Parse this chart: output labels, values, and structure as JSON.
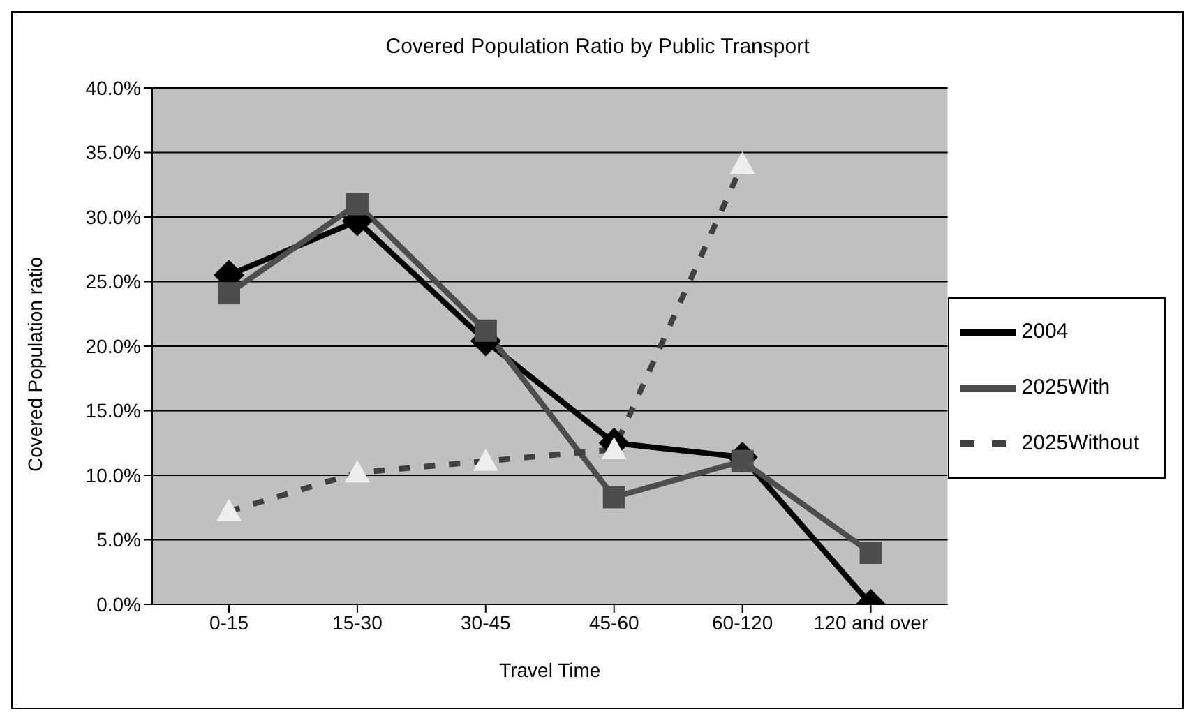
{
  "chart_data": {
    "type": "line",
    "title": "Covered Population Ratio by Public Transport",
    "xlabel": "Travel Time",
    "ylabel": "Covered Population ratio",
    "categories": [
      "0-15",
      "15-30",
      "30-45",
      "45-60",
      "60-120",
      "120 and over"
    ],
    "series": [
      {
        "name": "2004",
        "color": "#000000",
        "marker": "diamond",
        "line_style": "solid",
        "values": [
          25.5,
          29.7,
          20.4,
          12.5,
          11.4,
          0
        ]
      },
      {
        "name": "2025With",
        "color": "#4d4d4d",
        "marker": "square",
        "line_style": "solid",
        "values": [
          24.1,
          31.0,
          21.2,
          8.3,
          11.1,
          4.0
        ]
      },
      {
        "name": "2025Without",
        "color": "#404040",
        "marker": "triangle",
        "line_style": "dashed",
        "values": [
          7.2,
          10.2,
          11.1,
          12.0,
          34.1,
          null
        ]
      }
    ],
    "ylim": [
      0,
      40
    ],
    "yticks": [
      {
        "value": 0,
        "label": "0.0%"
      },
      {
        "value": 5,
        "label": "5.0%"
      },
      {
        "value": 10,
        "label": "10.0%"
      },
      {
        "value": 15,
        "label": "15.0%"
      },
      {
        "value": 20,
        "label": "20.0%"
      },
      {
        "value": 25,
        "label": "25.0%"
      },
      {
        "value": 30,
        "label": "30.0%"
      },
      {
        "value": 35,
        "label": "35.0%"
      },
      {
        "value": 40,
        "label": "40.0%"
      }
    ],
    "grid": "y",
    "legend": "right"
  }
}
